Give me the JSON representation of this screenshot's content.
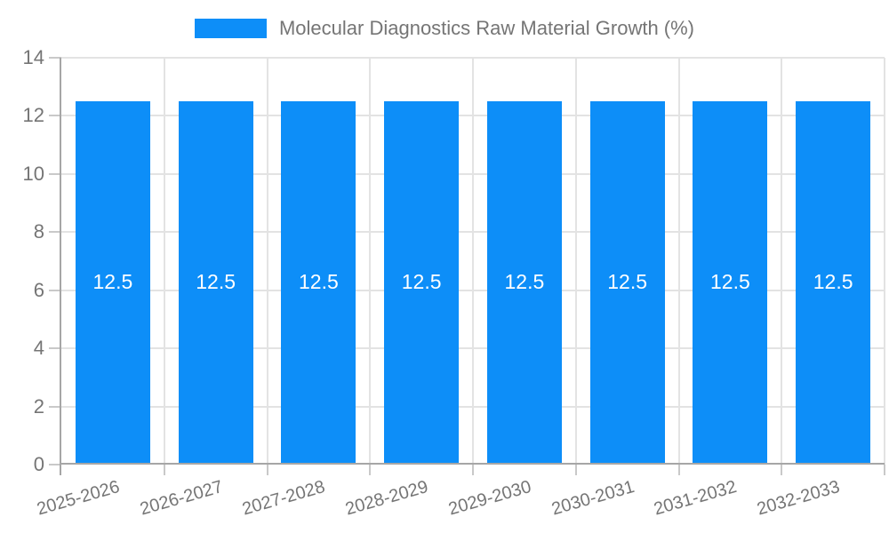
{
  "legend": {
    "label": "Molecular Diagnostics Raw Material Growth (%)"
  },
  "chart_data": {
    "type": "bar",
    "title": "Molecular Diagnostics Raw Material Growth (%)",
    "categories": [
      "2025-2026",
      "2026-2027",
      "2027-2028",
      "2028-2029",
      "2029-2030",
      "2030-2031",
      "2031-2032",
      "2032-2033"
    ],
    "series": [
      {
        "name": "Molecular Diagnostics Raw Material Growth (%)",
        "values": [
          12.5,
          12.5,
          12.5,
          12.5,
          12.5,
          12.5,
          12.5,
          12.5
        ]
      }
    ],
    "bar_value_labels": [
      "12.5",
      "12.5",
      "12.5",
      "12.5",
      "12.5",
      "12.5",
      "12.5",
      "12.5"
    ],
    "xlabel": "",
    "ylabel": "",
    "ylim": [
      0,
      14
    ],
    "yticks": [
      0,
      2,
      4,
      6,
      8,
      10,
      12,
      14
    ],
    "grid": true,
    "legend_position": "top-center",
    "x_label_rotation_deg": -16,
    "colors": {
      "bar": "#0d8ef8",
      "bar_label": "#ffffff",
      "axis_line": "#a6a6a6",
      "gridline": "#e3e3e3",
      "tick_line": "#c9c9c9",
      "text": "#757575",
      "background": "#ffffff"
    }
  }
}
